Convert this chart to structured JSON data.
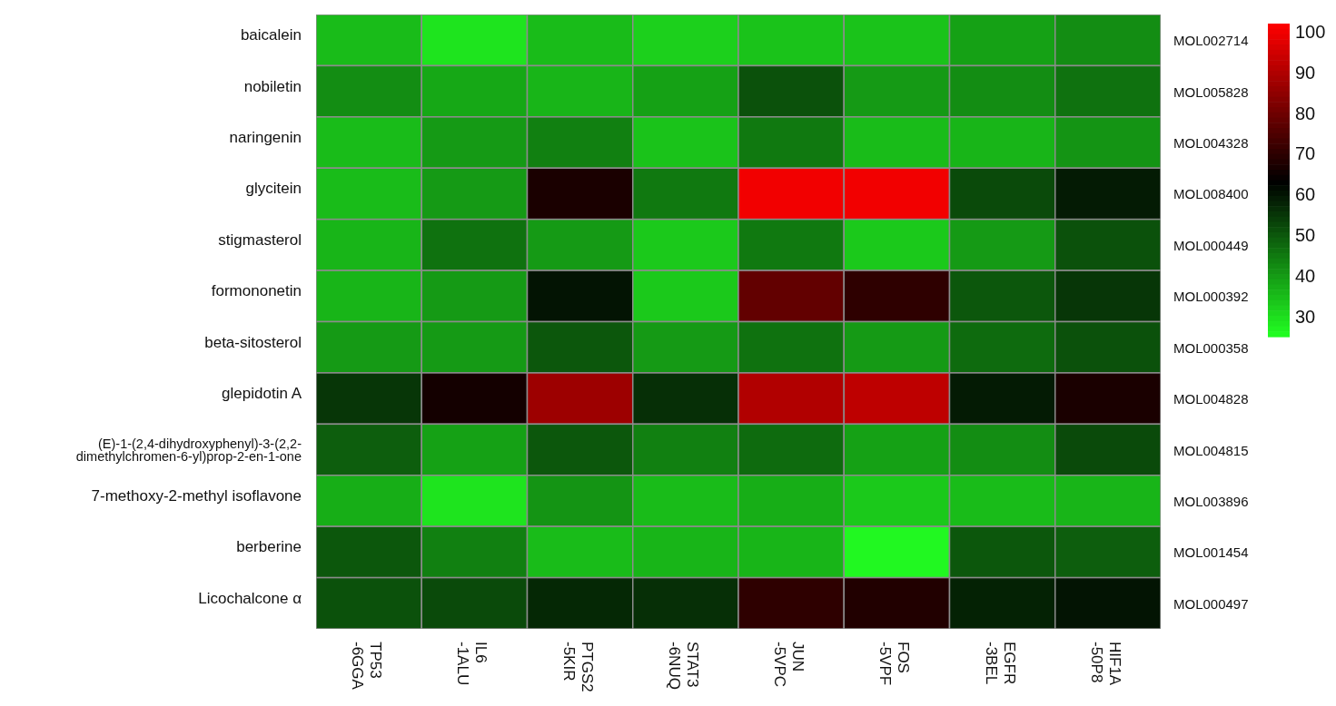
{
  "chart_data": {
    "type": "heatmap",
    "categories": [
      "TP53 -6GGA",
      "IL6 -1ALU",
      "PTGS2 -5KIR",
      "STAT3 -6NUQ",
      "JUN -5VPC",
      "FOS -5VPF",
      "EGFR -3BEL",
      "HIF1A -50P8"
    ],
    "y_categories": [
      "baicalein",
      "nobiletin",
      "naringenin",
      "glycitein",
      "stigmasterol",
      "formononetin",
      "beta-sitosterol",
      "glepidotin A",
      "(E)-1-(2,4-dihydroxyphenyl)-3-(2,2-dimethylchromen-6-yl)prop-2-en-1-one",
      "7-methoxy-2-methyl isoflavone",
      "berberine",
      "Licochalcone α"
    ],
    "y2_categories": [
      "MOL002714",
      "MOL005828",
      "MOL004328",
      "MOL008400",
      "MOL000449",
      "MOL000392",
      "MOL000358",
      "MOL004828",
      "MOL004815",
      "MOL003896",
      "MOL001454",
      "MOL000497"
    ],
    "cells": [
      [
        35,
        29,
        35,
        32,
        34,
        34,
        39,
        42
      ],
      [
        42,
        38,
        36,
        39,
        51,
        40,
        42,
        46
      ],
      [
        35,
        40,
        44,
        34,
        45,
        35,
        36,
        41
      ],
      [
        35,
        40,
        67,
        45,
        100,
        100,
        52,
        59
      ],
      [
        36,
        46,
        40,
        33,
        45,
        33,
        40,
        51
      ],
      [
        36,
        40,
        60,
        33,
        78,
        70,
        50,
        55
      ],
      [
        40,
        40,
        50,
        40,
        46,
        40,
        47,
        51
      ],
      [
        55,
        66,
        87,
        56,
        90,
        92,
        59,
        67
      ],
      [
        49,
        39,
        50,
        44,
        47,
        39,
        42,
        52
      ],
      [
        37,
        29,
        41,
        35,
        37,
        33,
        35,
        36
      ],
      [
        50,
        44,
        35,
        36,
        36,
        26,
        50,
        49
      ],
      [
        51,
        52,
        57,
        56,
        70,
        68,
        58,
        60
      ]
    ],
    "clim": [
      25,
      102
    ],
    "cticks": [
      30,
      40,
      50,
      60,
      70,
      80,
      90,
      100
    ]
  }
}
